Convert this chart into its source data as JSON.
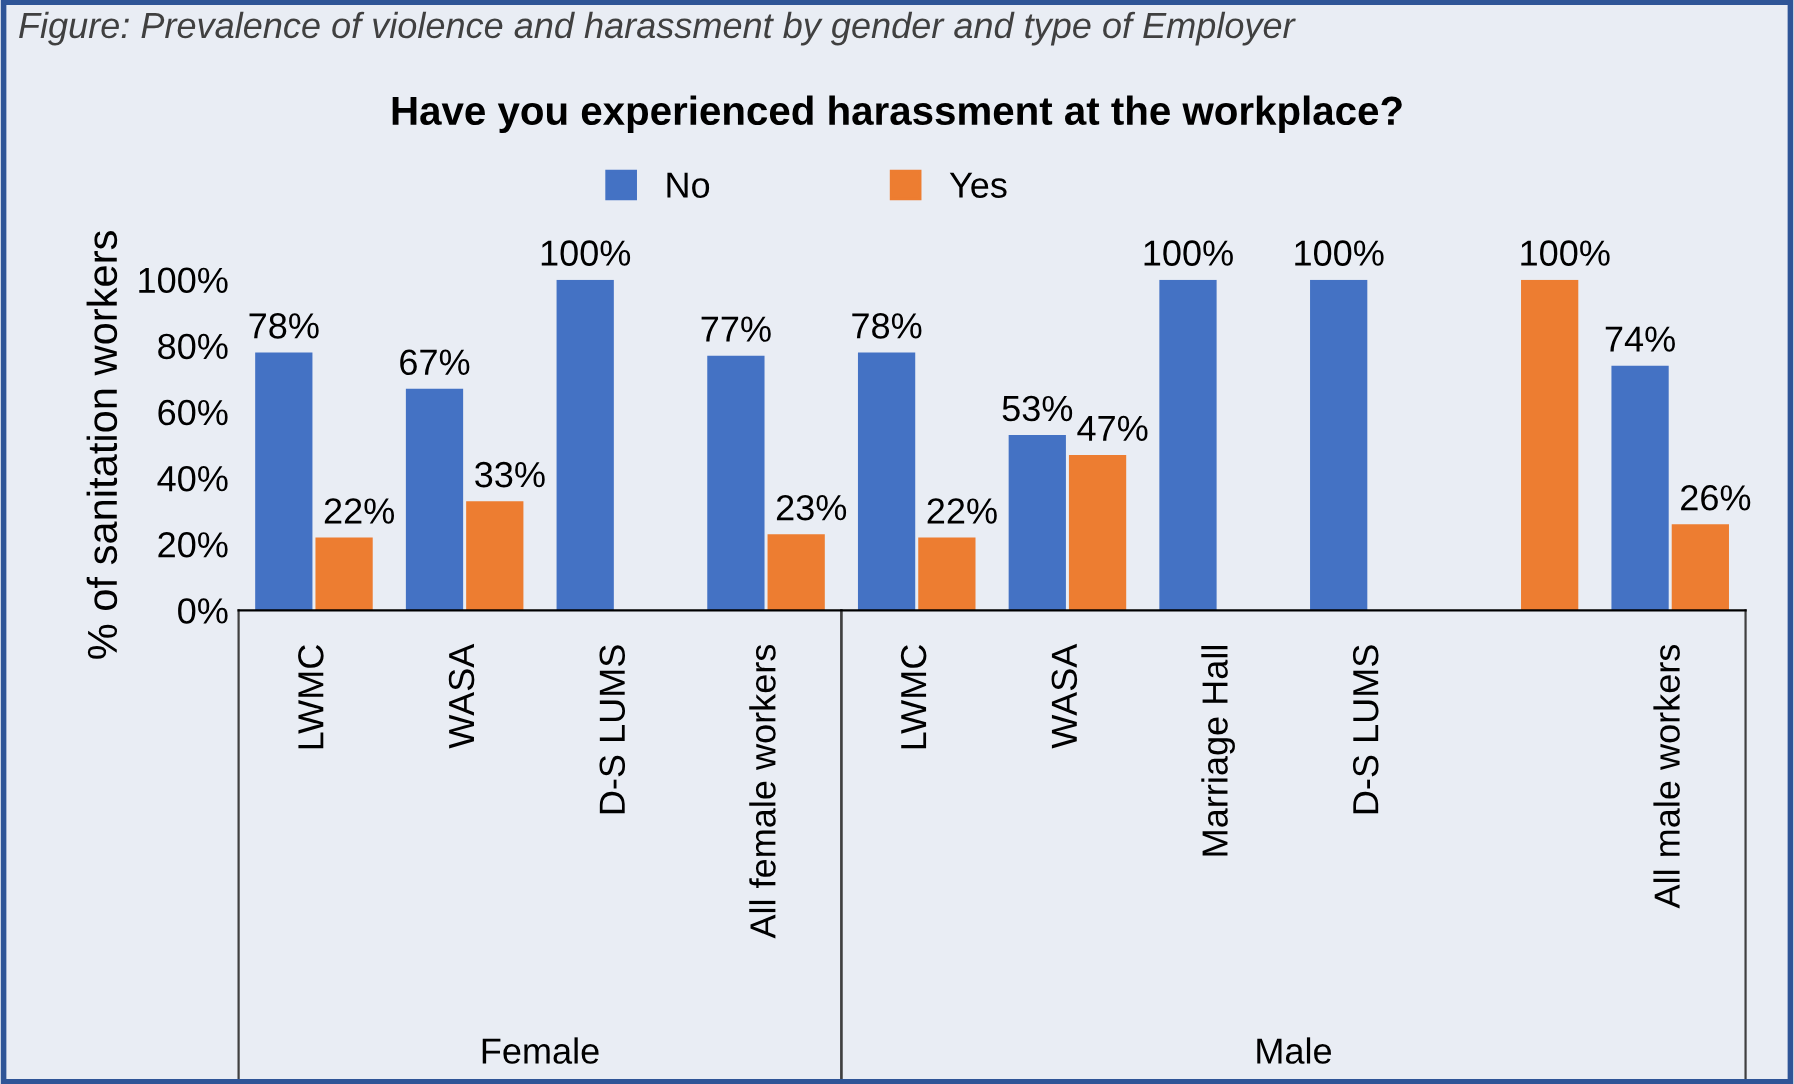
{
  "chart_data": {
    "type": "bar",
    "title": "Have you experienced harassment at the workplace?",
    "ylabel": "% of sanitation workers",
    "categories": [
      "LWMC",
      "WASA",
      "D-S LUMS",
      "All female workers",
      "LWMC",
      "WASA",
      "Marriage Hall",
      "D-S LUMS",
      null,
      "All male workers"
    ],
    "series": [
      {
        "name": "No",
        "color": "#4472c4",
        "values": [
          78,
          67,
          100,
          77,
          78,
          53,
          100,
          100,
          null,
          74
        ],
        "value_labels": [
          "78%",
          "67%",
          "100%",
          "77%",
          "78%",
          "53%",
          "100%",
          "100%",
          null,
          "74%"
        ]
      },
      {
        "name": "Yes",
        "color": "#ed7d31",
        "values": [
          22,
          33,
          null,
          23,
          22,
          47,
          null,
          null,
          100,
          26
        ],
        "value_labels": [
          "22%",
          "33%",
          null,
          "23%",
          "22%",
          "47%",
          null,
          null,
          "100%",
          "26%"
        ]
      }
    ],
    "ylim": [
      0,
      100
    ],
    "yticks": [
      {
        "value": 0,
        "label": "0%"
      },
      {
        "value": 20,
        "label": "20%"
      },
      {
        "value": 40,
        "label": "40%"
      },
      {
        "value": 60,
        "label": "60%"
      },
      {
        "value": 80,
        "label": "80%"
      },
      {
        "value": 100,
        "label": "100%"
      }
    ],
    "grid": false,
    "legend": "top",
    "annotations": [
      "Figure: Prevalence of violence and harassment by gender and type of Employer",
      "Female",
      "Male"
    ]
  }
}
